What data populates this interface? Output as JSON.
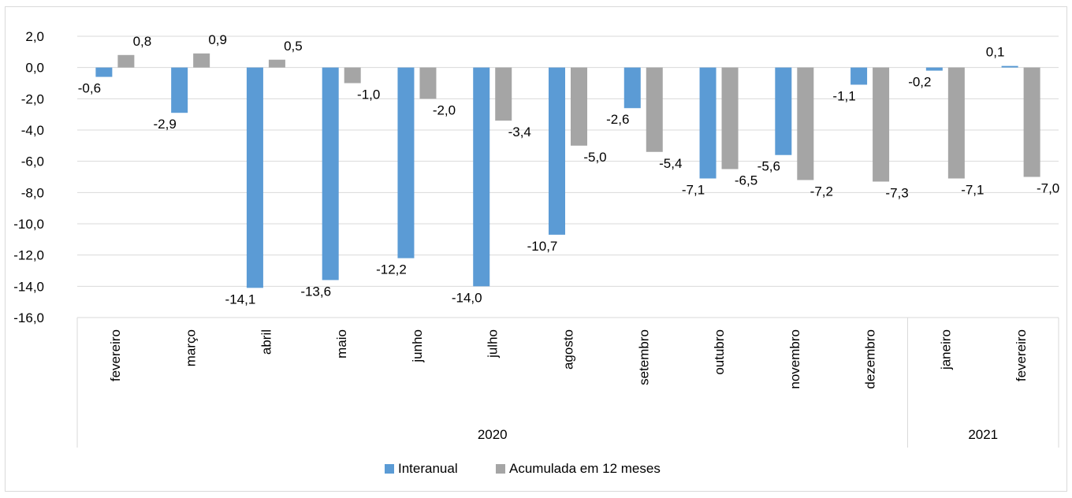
{
  "chart_data": {
    "type": "bar",
    "categories": [
      "fevereiro",
      "março",
      "abril",
      "maio",
      "junho",
      "julho",
      "agosto",
      "setembro",
      "outubro",
      "novembro",
      "dezembro",
      "janeiro",
      "fevereiro"
    ],
    "groups": [
      {
        "label": "2020",
        "count": 11
      },
      {
        "label": "2021",
        "count": 2
      }
    ],
    "series": [
      {
        "name": "Interanual",
        "color": "#5b9bd5",
        "values": [
          -0.6,
          -2.9,
          -14.1,
          -13.6,
          -12.2,
          -14.0,
          -10.7,
          -2.6,
          -7.1,
          -5.6,
          -1.1,
          -0.2,
          0.1
        ],
        "labels": [
          "-0,6",
          "-2,9",
          "-14,1",
          "-13,6",
          "-12,2",
          "-14,0",
          "-10,7",
          "-2,6",
          "-7,1",
          "-5,6",
          "-1,1",
          "-0,2",
          "0,1"
        ]
      },
      {
        "name": "Acumulada em 12 meses",
        "color": "#a5a5a5",
        "values": [
          0.8,
          0.9,
          0.5,
          -1.0,
          -2.0,
          -3.4,
          -5.0,
          -5.4,
          -6.5,
          -7.2,
          -7.3,
          -7.1,
          -7.0
        ],
        "labels": [
          "0,8",
          "0,9",
          "0,5",
          "-1,0",
          "-2,0",
          "-3,4",
          "-5,0",
          "-5,4",
          "-6,5",
          "-7,2",
          "-7,3",
          "-7,1",
          "-7,0"
        ]
      }
    ],
    "ylim": [
      -16,
      2
    ],
    "yticks": [
      2,
      0,
      -2,
      -4,
      -6,
      -8,
      -10,
      -12,
      -14,
      -16
    ],
    "ytick_labels": [
      "2,0",
      "0,0",
      "-2,0",
      "-4,0",
      "-6,0",
      "-8,0",
      "-10,0",
      "-12,0",
      "-14,0",
      "-16,0"
    ],
    "grid": true,
    "legend_position": "bottom",
    "title": "",
    "xlabel": "",
    "ylabel": ""
  }
}
